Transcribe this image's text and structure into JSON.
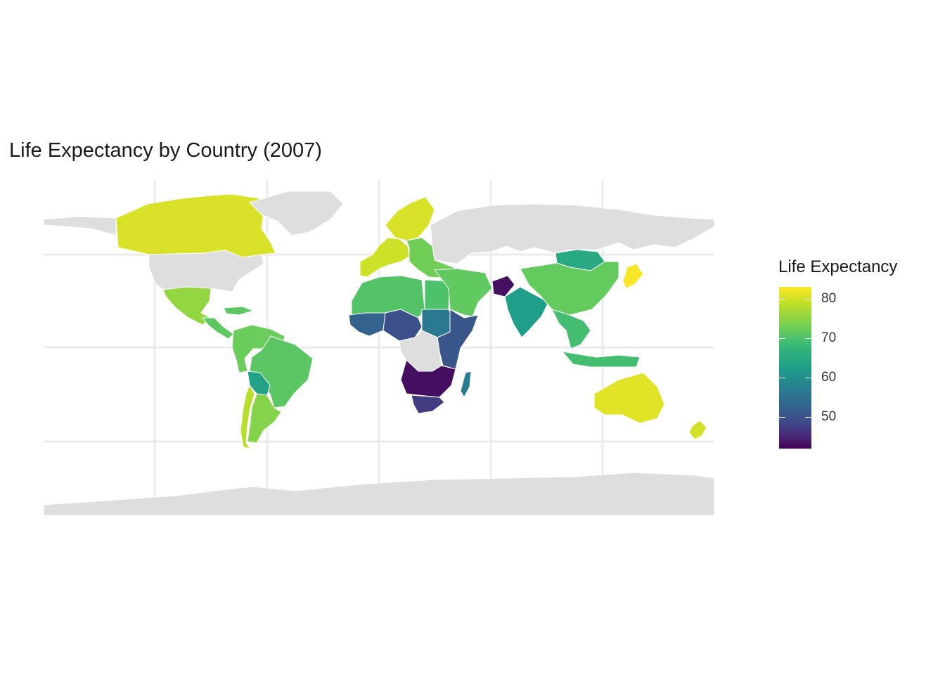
{
  "title": "Life Expectancy by Country (2007)",
  "legend": {
    "title": "Life Expectancy",
    "ticks": [
      "80",
      "70",
      "60",
      "50"
    ],
    "tick_values": [
      80,
      70,
      60,
      50
    ],
    "range": [
      42,
      83
    ],
    "palette": "viridis"
  },
  "colors": {
    "background": "#ffffff",
    "gridline": "#ebebeb",
    "no_data": "#dedede",
    "border": "#ffffff"
  },
  "regions": [
    {
      "name": "canada",
      "value": 80.7
    },
    {
      "name": "usa",
      "value": null
    },
    {
      "name": "greenland",
      "value": null
    },
    {
      "name": "mexico",
      "value": 76.2
    },
    {
      "name": "central-america",
      "value": 72.5
    },
    {
      "name": "south-america-north",
      "value": 73.5
    },
    {
      "name": "brazil",
      "value": 72.4
    },
    {
      "name": "bolivia",
      "value": 65.6
    },
    {
      "name": "argentina",
      "value": 75.3
    },
    {
      "name": "chile",
      "value": 78.6
    },
    {
      "name": "western-europe",
      "value": 80.0
    },
    {
      "name": "scandinavia",
      "value": 80.6
    },
    {
      "name": "eastern-europe",
      "value": 74.0
    },
    {
      "name": "russia",
      "value": null
    },
    {
      "name": "north-africa",
      "value": 71.8
    },
    {
      "name": "egypt",
      "value": 71.3
    },
    {
      "name": "west-africa",
      "value": 55.0
    },
    {
      "name": "sahel",
      "value": 52.0
    },
    {
      "name": "sudan",
      "value": 58.6
    },
    {
      "name": "east-africa",
      "value": 53.0
    },
    {
      "name": "central-africa",
      "value": null
    },
    {
      "name": "southern-africa",
      "value": 43.5
    },
    {
      "name": "south-africa",
      "value": 49.3
    },
    {
      "name": "madagascar",
      "value": 59.4
    },
    {
      "name": "middle-east",
      "value": 72.8
    },
    {
      "name": "afghanistan",
      "value": 43.8
    },
    {
      "name": "india",
      "value": 64.7
    },
    {
      "name": "mongolia",
      "value": 66.8
    },
    {
      "name": "china",
      "value": 73.0
    },
    {
      "name": "southeast-asia",
      "value": 70.6
    },
    {
      "name": "indonesia",
      "value": 70.6
    },
    {
      "name": "japan",
      "value": 82.6
    },
    {
      "name": "australia",
      "value": 81.2
    },
    {
      "name": "new-zealand",
      "value": 80.2
    },
    {
      "name": "antarctica",
      "value": null
    }
  ]
}
